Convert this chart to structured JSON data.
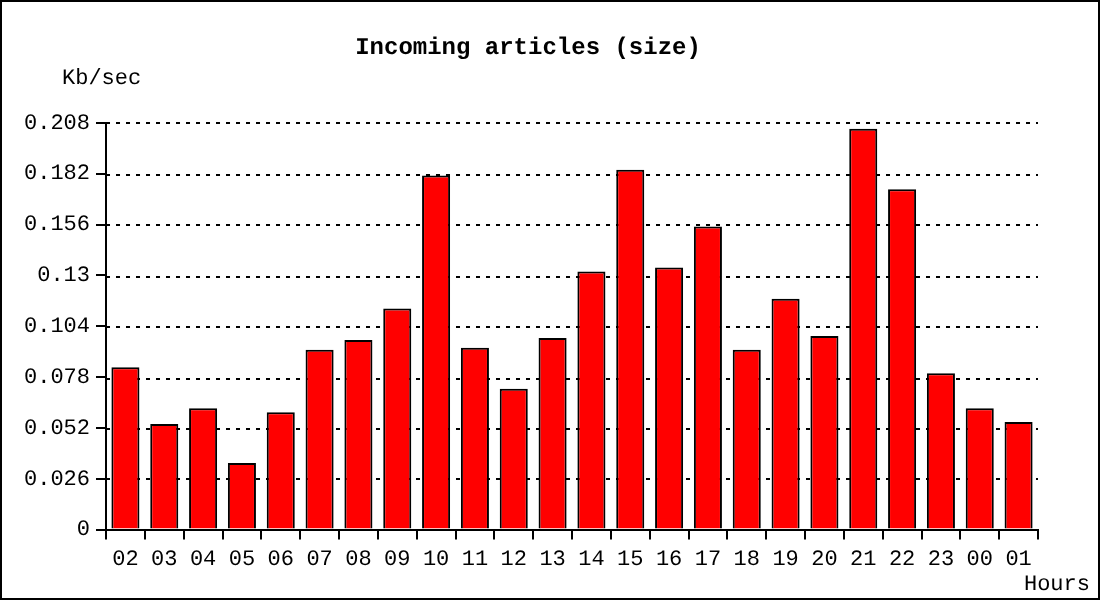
{
  "chart_data": {
    "type": "bar",
    "title": "Incoming articles (size)",
    "ylabel": "Kb/sec",
    "xlabel": "Hours",
    "categories": [
      "02",
      "03",
      "04",
      "05",
      "06",
      "07",
      "08",
      "09",
      "10",
      "11",
      "12",
      "13",
      "14",
      "15",
      "16",
      "17",
      "18",
      "19",
      "20",
      "21",
      "22",
      "23",
      "00",
      "01"
    ],
    "values": [
      0.083,
      0.054,
      0.062,
      0.034,
      0.06,
      0.092,
      0.097,
      0.113,
      0.181,
      0.093,
      0.072,
      0.098,
      0.132,
      0.184,
      0.134,
      0.155,
      0.092,
      0.118,
      0.099,
      0.205,
      0.174,
      0.08,
      0.062,
      0.055
    ],
    "color": "#ff0000",
    "ylim": [
      0,
      0.208
    ],
    "yticks": [
      0,
      0.026,
      0.052,
      0.078,
      0.104,
      0.13,
      0.156,
      0.182,
      0.208
    ],
    "grid": "y"
  }
}
